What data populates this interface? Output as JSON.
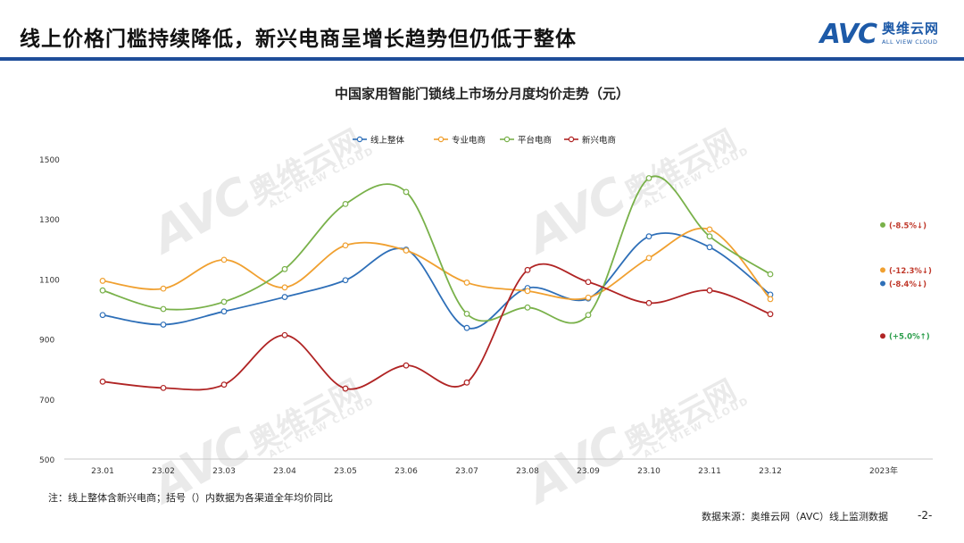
{
  "header": {
    "title": "线上价格门槛持续降低，新兴电商呈增长趋势但仍低于整体",
    "logo_text": "AVC",
    "logo_cn": "奥维云网",
    "logo_en": "ALL VIEW CLOUD"
  },
  "colors": {
    "header_bar": "#1f4e9a",
    "series": [
      "#2e6fb8",
      "#f0a030",
      "#79b14a",
      "#b02424"
    ]
  },
  "chart_data": {
    "type": "line",
    "title": "中国家用智能门锁线上市场分月度均价走势（元）",
    "categories": [
      "23.01",
      "23.02",
      "23.03",
      "23.04",
      "23.05",
      "23.06",
      "23.07",
      "23.08",
      "23.09",
      "23.10",
      "23.11",
      "23.12"
    ],
    "extra_x_label": "2023年",
    "ylim": [
      500,
      1500
    ],
    "yticks": [
      500,
      700,
      900,
      1100,
      1300,
      1500
    ],
    "legend_position": "top",
    "smooth": true,
    "series": [
      {
        "name": "线上整体",
        "color": "#2e6fb8",
        "values": [
          980,
          948,
          992,
          1040,
          1096,
          1198,
          937,
          1070,
          1035,
          1242,
          1206,
          1048
        ],
        "annotation": "(-8.4%↓)",
        "annotation_color": "#c0392b",
        "annotation_value": 1085
      },
      {
        "name": "专业电商",
        "color": "#f0a030",
        "values": [
          1094,
          1068,
          1164,
          1072,
          1212,
          1195,
          1088,
          1060,
          1038,
          1170,
          1265,
          1033
        ],
        "annotation": "(-12.3%↓)",
        "annotation_color": "#c0392b",
        "annotation_value": 1130
      },
      {
        "name": "平台电商",
        "color": "#79b14a",
        "values": [
          1062,
          1000,
          1024,
          1133,
          1350,
          1390,
          984,
          1005,
          980,
          1436,
          1242,
          1116
        ],
        "annotation": "(-8.5%↓)",
        "annotation_color": "#c0392b",
        "annotation_value": 1280
      },
      {
        "name": "新兴电商",
        "color": "#b02424",
        "values": [
          758,
          737,
          748,
          913,
          735,
          812,
          755,
          1130,
          1090,
          1020,
          1062,
          983
        ],
        "annotation": "(+5.0%↑)",
        "annotation_color": "#2a9d4a",
        "annotation_value": 910
      }
    ]
  },
  "footer": {
    "note": "注：线上整体含新兴电商；括号（）内数据为各渠道全年均价同比",
    "source": "数据来源：奥维云网（AVC）线上监测数据",
    "page": "-2-"
  },
  "watermark": {
    "main": "AVC 奥维云网",
    "sub": "ALL VIEW CLOUD"
  }
}
